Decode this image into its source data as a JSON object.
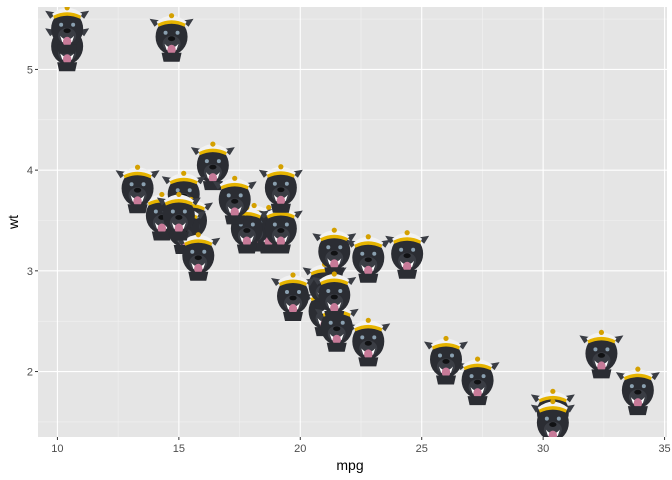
{
  "chart_data": {
    "type": "scatter",
    "title": "",
    "xlabel": "mpg",
    "ylabel": "wt",
    "xlim": [
      9.2,
      35.1
    ],
    "ylim": [
      1.35,
      5.62
    ],
    "x_ticks": [
      10,
      15,
      20,
      25,
      30,
      35
    ],
    "y_ticks": [
      2,
      3,
      4,
      5
    ],
    "x_tick_labels": [
      "10",
      "15",
      "20",
      "25",
      "30",
      "35"
    ],
    "y_tick_labels": [
      "2",
      "3",
      "4",
      "5"
    ],
    "grid": true,
    "marker": "dog-face-with-captain-hat",
    "colors": {
      "panel": "#e5e5e5",
      "grid_major": "#ffffff",
      "grid_minor": "#f2f2f2",
      "dog_fur": "#2b2d33",
      "tongue": "#c77a98",
      "hat_band": "#e6b400"
    },
    "points": [
      {
        "x": 21.0,
        "y": 2.62
      },
      {
        "x": 21.0,
        "y": 2.875
      },
      {
        "x": 22.8,
        "y": 2.32
      },
      {
        "x": 21.4,
        "y": 3.215
      },
      {
        "x": 18.7,
        "y": 3.44
      },
      {
        "x": 18.1,
        "y": 3.46
      },
      {
        "x": 14.3,
        "y": 3.57
      },
      {
        "x": 24.4,
        "y": 3.19
      },
      {
        "x": 22.8,
        "y": 3.15
      },
      {
        "x": 19.2,
        "y": 3.44
      },
      {
        "x": 17.8,
        "y": 3.44
      },
      {
        "x": 16.4,
        "y": 4.07
      },
      {
        "x": 17.3,
        "y": 3.73
      },
      {
        "x": 15.2,
        "y": 3.78
      },
      {
        "x": 10.4,
        "y": 5.25
      },
      {
        "x": 10.4,
        "y": 5.424
      },
      {
        "x": 14.7,
        "y": 5.345
      },
      {
        "x": 32.4,
        "y": 2.2
      },
      {
        "x": 30.4,
        "y": 1.615
      },
      {
        "x": 33.9,
        "y": 1.835
      },
      {
        "x": 21.5,
        "y": 2.465
      },
      {
        "x": 15.5,
        "y": 3.52
      },
      {
        "x": 15.2,
        "y": 3.435
      },
      {
        "x": 13.3,
        "y": 3.84
      },
      {
        "x": 19.2,
        "y": 3.845
      },
      {
        "x": 27.3,
        "y": 1.935
      },
      {
        "x": 26.0,
        "y": 2.14
      },
      {
        "x": 30.4,
        "y": 1.513
      },
      {
        "x": 15.8,
        "y": 3.17
      },
      {
        "x": 19.7,
        "y": 2.77
      },
      {
        "x": 15.0,
        "y": 3.57
      },
      {
        "x": 21.4,
        "y": 2.78
      }
    ]
  }
}
